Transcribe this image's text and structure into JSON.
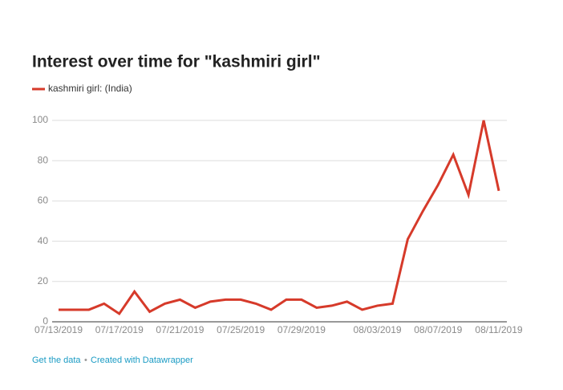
{
  "chart_data": {
    "type": "line",
    "title": "Interest over time for \"kashmiri girl\"",
    "footer": [
      "Get the data",
      "Created with Datawrapper"
    ],
    "categories": [
      "07/13/2019",
      null,
      null,
      null,
      "07/17/2019",
      null,
      null,
      null,
      "07/21/2019",
      null,
      null,
      null,
      "07/25/2019",
      null,
      null,
      null,
      "07/29/2019",
      null,
      null,
      null,
      null,
      "08/03/2019",
      null,
      null,
      null,
      "08/07/2019",
      null,
      null,
      null,
      "08/11/2019"
    ],
    "series": [
      {
        "name": "kashmiri girl: (India)",
        "color": "#d63a2a",
        "values": [
          6,
          6,
          6,
          9,
          4,
          15,
          5,
          9,
          11,
          7,
          10,
          11,
          11,
          9,
          6,
          11,
          11,
          7,
          8,
          10,
          6,
          8,
          9,
          41,
          55,
          68,
          83,
          63,
          100,
          65
        ]
      }
    ],
    "ylim": [
      0,
      100
    ],
    "yticks": [
      0,
      20,
      40,
      60,
      80,
      100
    ],
    "grid": true
  }
}
